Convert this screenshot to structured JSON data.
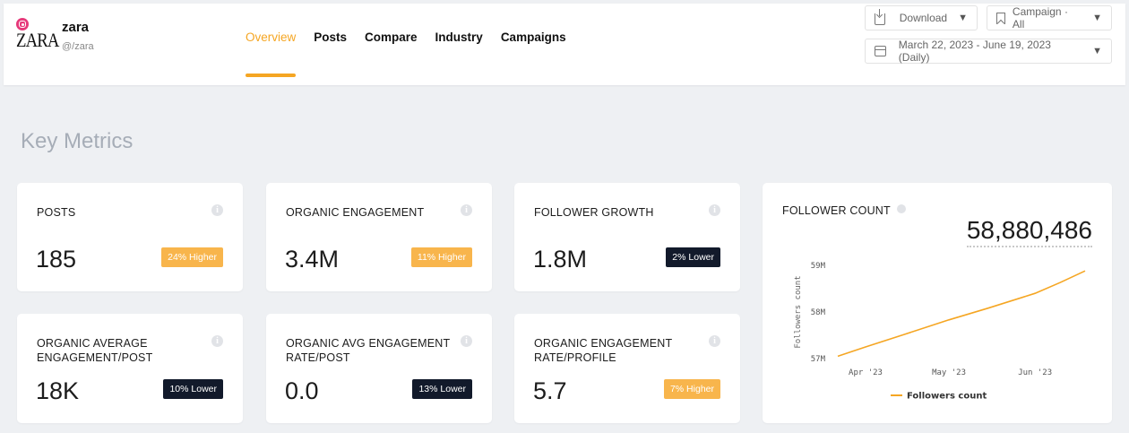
{
  "header": {
    "brand_name": "zara",
    "brand_handle": "@/zara",
    "logo_text": "ZARA",
    "nav": [
      "Overview",
      "Posts",
      "Compare",
      "Industry",
      "Campaigns"
    ],
    "download_label": "Download",
    "campaign_label": "Campaign · All",
    "date_range": "March 22, 2023 - June 19, 2023 (Daily)"
  },
  "section_title": "Key Metrics",
  "metrics": [
    {
      "label": "POSTS",
      "value": "185",
      "badge": "24% Higher",
      "trend": "higher"
    },
    {
      "label": "ORGANIC ENGAGEMENT",
      "value": "3.4M",
      "badge": "11% Higher",
      "trend": "higher"
    },
    {
      "label": "FOLLOWER GROWTH",
      "value": "1.8M",
      "badge": "2% Lower",
      "trend": "lower"
    },
    {
      "label": "ORGANIC AVERAGE ENGAGEMENT/POST",
      "value": "18K",
      "badge": "10% Lower",
      "trend": "lower"
    },
    {
      "label": "ORGANIC AVG ENGAGEMENT RATE/POST",
      "value": "0.0",
      "badge": "13% Lower",
      "trend": "lower"
    },
    {
      "label": "ORGANIC ENGAGEMENT RATE/PROFILE",
      "value": "5.7",
      "badge": "7% Higher",
      "trend": "higher"
    }
  ],
  "follower_card": {
    "label": "FOLLOWER COUNT",
    "count": "58,880,486"
  },
  "chart_data": {
    "type": "line",
    "title": "",
    "xlabel": "",
    "ylabel": "Followers count",
    "x_ticks": [
      "Apr '23",
      "May '23",
      "Jun '23"
    ],
    "y_ticks": [
      "57M",
      "58M",
      "59M"
    ],
    "ylim": [
      57000000,
      59000000
    ],
    "x_range": [
      "2023-03-22",
      "2023-06-19"
    ],
    "series": [
      {
        "name": "Followers count",
        "color": "#f5a623",
        "x": [
          "2023-03-22",
          "2023-04-01",
          "2023-04-15",
          "2023-05-01",
          "2023-05-15",
          "2023-06-01",
          "2023-06-10",
          "2023-06-19"
        ],
        "values": [
          57050000,
          57250000,
          57520000,
          57830000,
          58080000,
          58400000,
          58630000,
          58880486
        ]
      }
    ],
    "grid": false,
    "legend": "bottom"
  }
}
